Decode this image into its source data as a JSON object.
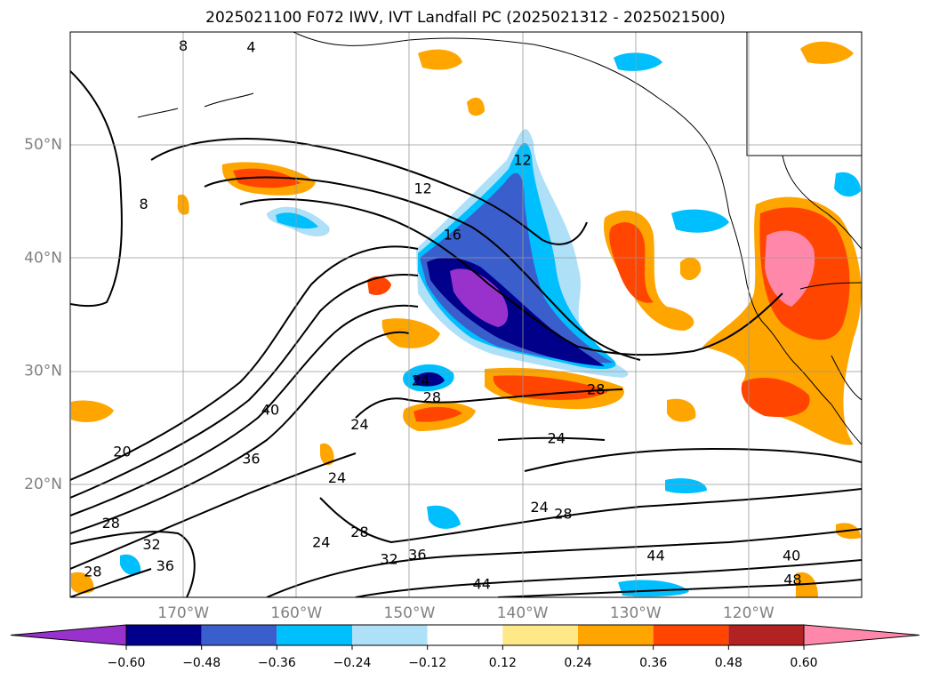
{
  "title": "2025021100 F072 IWV, IVT Landfall PC (2025021312 - 2025021500)",
  "map": {
    "projection": "equirectangular",
    "lon_range": [
      -180,
      -110
    ],
    "lat_range": [
      10,
      60
    ],
    "lat_ticks": [
      {
        "lat": 50,
        "label": "50°N"
      },
      {
        "lat": 40,
        "label": "40°N"
      },
      {
        "lat": 30,
        "label": "30°N"
      },
      {
        "lat": 20,
        "label": "20°N"
      }
    ],
    "lon_ticks": [
      {
        "lon": -170,
        "label": "170°W"
      },
      {
        "lon": -160,
        "label": "160°W"
      },
      {
        "lon": -150,
        "label": "150°W"
      },
      {
        "lon": -140,
        "label": "140°W"
      },
      {
        "lon": -130,
        "label": "130°W"
      },
      {
        "lon": -120,
        "label": "120°W"
      }
    ],
    "grid": true
  },
  "colorbar": {
    "colors": [
      "#9932cc",
      "#00008b",
      "#3a5fcd",
      "#00bfff",
      "#aee0f8",
      "#ffffff",
      "#ffe888",
      "#ffa500",
      "#ff4500",
      "#b22222",
      "#ff88aa"
    ],
    "tick_labels": [
      "−0.60",
      "−0.48",
      "−0.36",
      "−0.24",
      "−0.12",
      "0.12",
      "0.24",
      "0.36",
      "0.48",
      "0.60"
    ],
    "extend": "both"
  },
  "contour_labels": [
    {
      "text": "8",
      "lon": -170,
      "lat": 58.7
    },
    {
      "text": "4",
      "lon": -164,
      "lat": 58.6
    },
    {
      "text": "8",
      "lon": -173.5,
      "lat": 44.7
    },
    {
      "text": "12",
      "lon": -148.8,
      "lat": 46.1
    },
    {
      "text": "16",
      "lon": -146.2,
      "lat": 42
    },
    {
      "text": "12",
      "lon": -140,
      "lat": 48.6
    },
    {
      "text": "24",
      "lon": -149,
      "lat": 29.1
    },
    {
      "text": "28",
      "lon": -148,
      "lat": 27.6
    },
    {
      "text": "24",
      "lon": -154.4,
      "lat": 25.2
    },
    {
      "text": "28",
      "lon": -133.5,
      "lat": 28.3
    },
    {
      "text": "24",
      "lon": -137,
      "lat": 24
    },
    {
      "text": "20",
      "lon": -175.4,
      "lat": 22.8
    },
    {
      "text": "36",
      "lon": -164,
      "lat": 22.2
    },
    {
      "text": "40",
      "lon": -162.3,
      "lat": 26.5
    },
    {
      "text": "24",
      "lon": -156.4,
      "lat": 20.5
    },
    {
      "text": "28",
      "lon": -176.4,
      "lat": 16.5
    },
    {
      "text": "32",
      "lon": -172.8,
      "lat": 14.6
    },
    {
      "text": "36",
      "lon": -171.6,
      "lat": 12.7
    },
    {
      "text": "28",
      "lon": -178,
      "lat": 12.2
    },
    {
      "text": "24",
      "lon": -157.8,
      "lat": 14.8
    },
    {
      "text": "28",
      "lon": -154.4,
      "lat": 15.7
    },
    {
      "text": "32",
      "lon": -151.8,
      "lat": 13.3
    },
    {
      "text": "36",
      "lon": -149.3,
      "lat": 13.7
    },
    {
      "text": "24",
      "lon": -138.5,
      "lat": 17.9
    },
    {
      "text": "28",
      "lon": -136.4,
      "lat": 17.3
    },
    {
      "text": "44",
      "lon": -143.6,
      "lat": 11.1
    },
    {
      "text": "44",
      "lon": -128.2,
      "lat": 13.6
    },
    {
      "text": "40",
      "lon": -116.2,
      "lat": 13.6
    },
    {
      "text": "48",
      "lon": -116.1,
      "lat": 11.5
    }
  ]
}
